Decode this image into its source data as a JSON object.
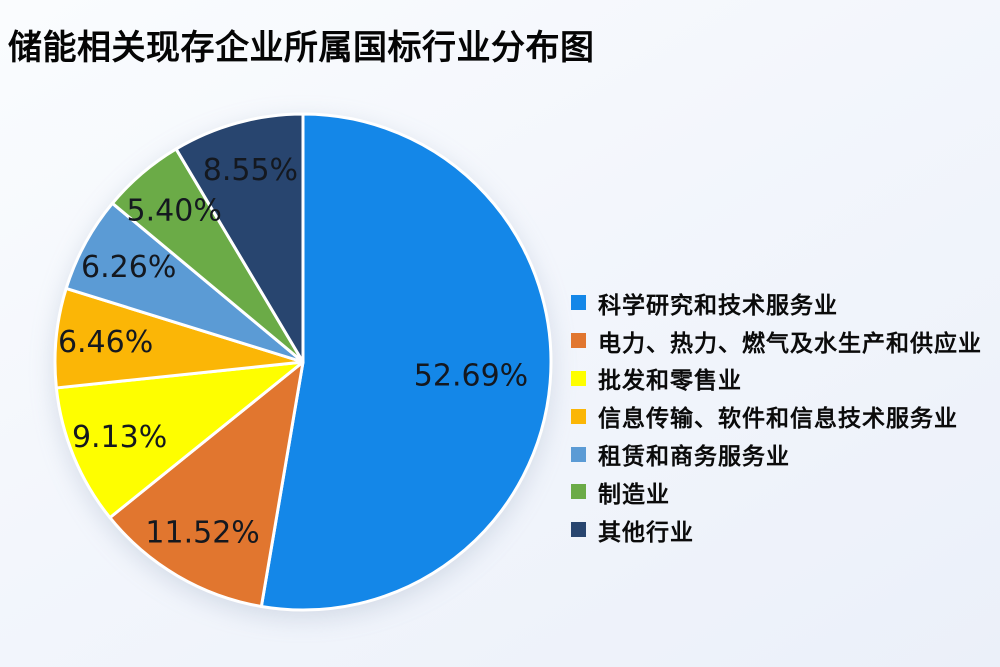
{
  "title": "储能相关现存企业所属国标行业分布图",
  "page": {
    "background_top": "#FAFCFE",
    "background_bottom": "#EBF0F9"
  },
  "chart_data": {
    "type": "pie",
    "title": "储能相关现存企业所属国标行业分布图",
    "unit": "%",
    "direction": "clockwise",
    "start_angle_deg": 0,
    "legend_position": "right",
    "grid": "off",
    "slice_border_color": "#FFFFFF",
    "label_color": "#14181F",
    "label_radius_ratio": [
      0.68,
      0.8,
      0.8,
      0.8,
      0.8,
      0.8,
      0.8
    ],
    "slices": [
      {
        "label": "科学研究和技术服务业",
        "value": 52.69,
        "display": "52.69%",
        "color": "#1487E8"
      },
      {
        "label": "电力、热力、燃气及水生产和供应业",
        "value": 11.52,
        "display": "11.52%",
        "color": "#E1762F"
      },
      {
        "label": "批发和零售业",
        "value": 9.13,
        "display": "9.13%",
        "color": "#FEFE00"
      },
      {
        "label": "信息传输、软件和信息技术服务业",
        "value": 6.46,
        "display": "6.46%",
        "color": "#FBB606"
      },
      {
        "label": "租赁和商务服务业",
        "value": 6.26,
        "display": "6.26%",
        "color": "#5B9BD5"
      },
      {
        "label": "制造业",
        "value": 5.4,
        "display": "5.40%",
        "color": "#6BAB47"
      },
      {
        "label": "其他行业",
        "value": 8.55,
        "display": "8.55%",
        "color": "#28456F"
      }
    ]
  }
}
